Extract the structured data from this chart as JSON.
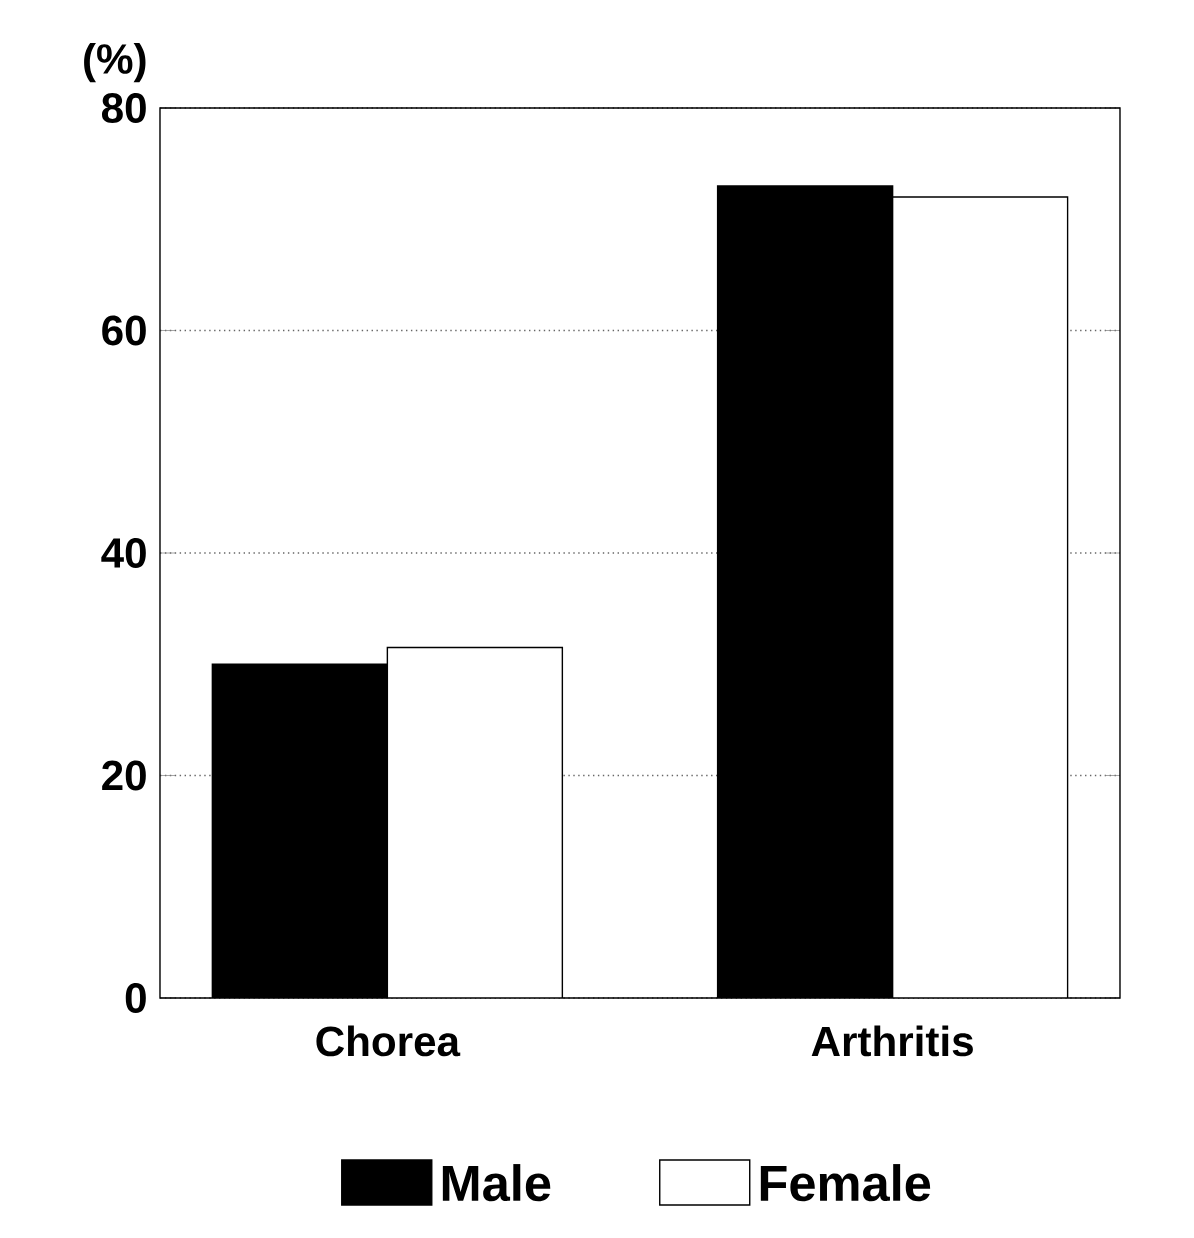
{
  "chart_data": {
    "type": "bar",
    "ylabel": "(%)",
    "categories": [
      "Chorea",
      "Arthritis"
    ],
    "series": [
      {
        "name": "Male",
        "color": "#000000",
        "values": [
          30,
          73
        ]
      },
      {
        "name": "Female",
        "color": "#ffffff",
        "values": [
          31.5,
          72
        ]
      }
    ],
    "ylim": [
      0,
      80
    ],
    "yticks": [
      0,
      20,
      40,
      60,
      80
    ],
    "grid": "y",
    "legend": "bottom"
  }
}
